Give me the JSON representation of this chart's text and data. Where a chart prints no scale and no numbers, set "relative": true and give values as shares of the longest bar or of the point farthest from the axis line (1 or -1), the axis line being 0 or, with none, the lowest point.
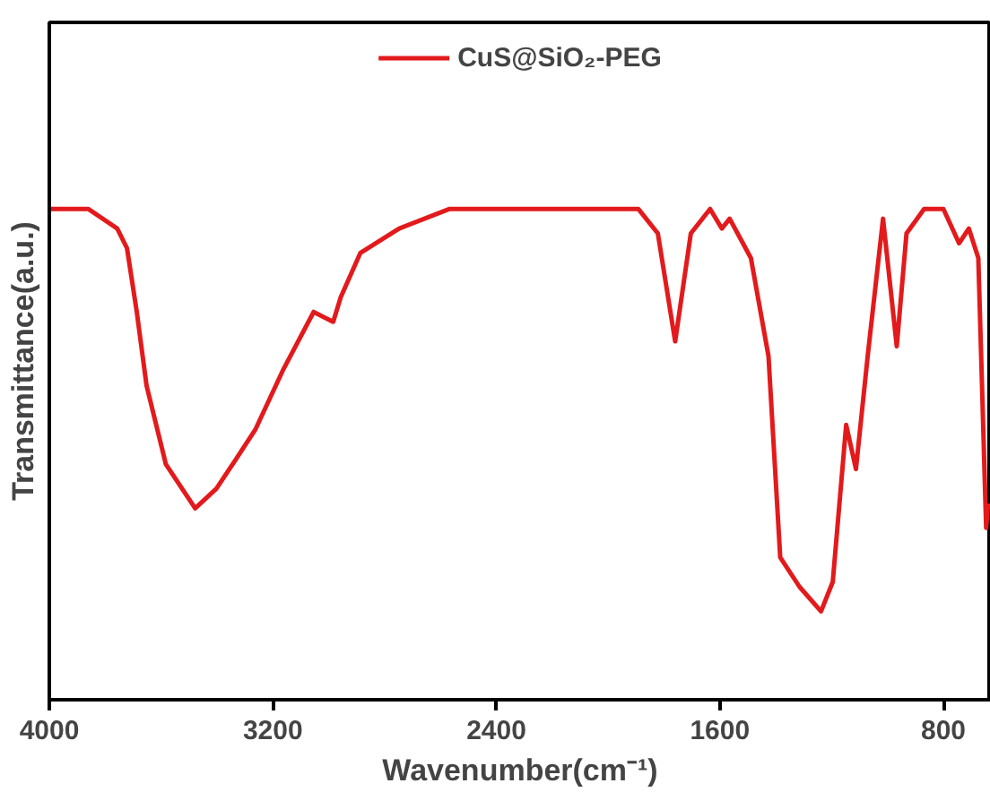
{
  "chart_data": {
    "type": "line",
    "xlabel": "Wavenumber(cm⁻¹)",
    "ylabel": "Transmittance(a.u.)",
    "relative": true,
    "xlim": [
      4000,
      630
    ],
    "xticks": [
      4000,
      3200,
      2400,
      1600,
      800
    ],
    "tick_labels": "x",
    "grid": false,
    "legend": "top",
    "marker": "none",
    "line_style": "solid",
    "series": [
      {
        "name": "CuS@SiO₂-PEG",
        "color": "#e31a1c",
        "x": [
          4000,
          3861,
          3757,
          3722,
          3687,
          3652,
          3583,
          3478,
          3402,
          3332,
          3263,
          3165,
          3054,
          2984,
          2957,
          2887,
          2748,
          2567,
          2379,
          1962,
          1892,
          1822,
          1760,
          1704,
          1635,
          1593,
          1565,
          1489,
          1426,
          1384,
          1315,
          1238,
          1196,
          1148,
          1113,
          1071,
          1016,
          967,
          932,
          869,
          800,
          744,
          709,
          675,
          647,
          640
        ],
        "values": [
          1.0,
          1.0,
          0.96,
          0.92,
          0.79,
          0.64,
          0.48,
          0.39,
          0.43,
          0.49,
          0.55,
          0.67,
          0.79,
          0.77,
          0.82,
          0.91,
          0.96,
          1.0,
          1.0,
          1.0,
          1.0,
          0.95,
          0.73,
          0.95,
          1.0,
          0.96,
          0.98,
          0.9,
          0.7,
          0.29,
          0.23,
          0.18,
          0.24,
          0.56,
          0.47,
          0.7,
          0.98,
          0.72,
          0.95,
          1.0,
          1.0,
          0.93,
          0.96,
          0.9,
          0.35,
          0.4
        ]
      }
    ]
  }
}
